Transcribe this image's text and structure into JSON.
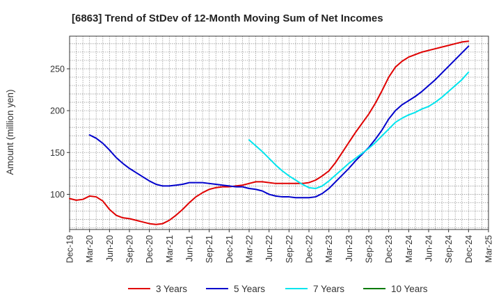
{
  "chart_data": {
    "type": "line",
    "title": "[6863]  Trend of StDev of 12-Month Moving Sum of Net Incomes",
    "ylabel": "Amount (million yen)",
    "xlabel": "",
    "ylim": [
      58,
      289
    ],
    "yticks": [
      100,
      150,
      200,
      250
    ],
    "x_tick_labels": [
      "Dec-19",
      "Mar-20",
      "Jun-20",
      "Sep-20",
      "Dec-20",
      "Mar-21",
      "Jun-21",
      "Sep-21",
      "Dec-21",
      "Mar-22",
      "Jun-22",
      "Sep-22",
      "Dec-22",
      "Mar-23",
      "Jun-23",
      "Sep-23",
      "Dec-23",
      "Mar-24",
      "Jun-24",
      "Sep-24",
      "Dec-24",
      "Mar-25"
    ],
    "months": [
      "Dec-19",
      "Jan-20",
      "Feb-20",
      "Mar-20",
      "Apr-20",
      "May-20",
      "Jun-20",
      "Jul-20",
      "Aug-20",
      "Sep-20",
      "Oct-20",
      "Nov-20",
      "Dec-20",
      "Jan-21",
      "Feb-21",
      "Mar-21",
      "Apr-21",
      "May-21",
      "Jun-21",
      "Jul-21",
      "Aug-21",
      "Sep-21",
      "Oct-21",
      "Nov-21",
      "Dec-21",
      "Jan-22",
      "Feb-22",
      "Mar-22",
      "Apr-22",
      "May-22",
      "Jun-22",
      "Jul-22",
      "Aug-22",
      "Sep-22",
      "Oct-22",
      "Nov-22",
      "Dec-22",
      "Jan-23",
      "Feb-23",
      "Mar-23",
      "Apr-23",
      "May-23",
      "Jun-23",
      "Jul-23",
      "Aug-23",
      "Sep-23",
      "Oct-23",
      "Nov-23",
      "Dec-23",
      "Jan-24",
      "Feb-24",
      "Mar-24",
      "Apr-24",
      "May-24",
      "Jun-24",
      "Jul-24",
      "Aug-24",
      "Sep-24",
      "Oct-24",
      "Nov-24",
      "Dec-24",
      "Jan-25",
      "Feb-25",
      "Mar-25"
    ],
    "grid": true,
    "legend_position": "bottom",
    "series": [
      {
        "name": "3 Years",
        "color": "#e00000",
        "values": [
          95,
          93,
          94,
          98,
          97,
          92,
          82,
          75,
          72,
          71,
          69,
          67,
          65,
          64,
          65,
          69,
          75,
          82,
          90,
          97,
          102,
          106,
          108,
          109,
          109,
          110,
          111,
          113,
          115,
          115,
          114,
          113,
          113,
          113,
          113,
          113,
          114,
          117,
          122,
          128,
          138,
          150,
          162,
          174,
          185,
          196,
          209,
          224,
          240,
          252,
          259,
          264,
          267,
          270,
          272,
          274,
          276,
          278,
          280,
          282,
          283,
          null,
          null,
          null
        ]
      },
      {
        "name": "5 Years",
        "color": "#0000cc",
        "values": [
          null,
          null,
          null,
          171,
          167,
          161,
          153,
          144,
          137,
          131,
          126,
          121,
          116,
          112,
          110,
          110,
          111,
          112,
          114,
          114,
          114,
          113,
          112,
          111,
          110,
          109,
          109,
          107,
          106,
          104,
          100,
          98,
          97,
          97,
          96,
          96,
          96,
          97,
          101,
          107,
          115,
          123,
          131,
          140,
          148,
          156,
          166,
          177,
          190,
          200,
          207,
          212,
          217,
          223,
          230,
          237,
          245,
          253,
          261,
          269,
          277,
          null,
          null,
          null
        ]
      },
      {
        "name": "7 Years",
        "color": "#00e5ee",
        "values": [
          null,
          null,
          null,
          null,
          null,
          null,
          null,
          null,
          null,
          null,
          null,
          null,
          null,
          null,
          null,
          null,
          null,
          null,
          null,
          null,
          null,
          null,
          null,
          null,
          null,
          null,
          null,
          165,
          158,
          151,
          143,
          135,
          128,
          122,
          117,
          112,
          108,
          107,
          110,
          116,
          123,
          130,
          137,
          143,
          149,
          155,
          162,
          170,
          178,
          186,
          191,
          195,
          198,
          202,
          205,
          210,
          216,
          223,
          230,
          237,
          246,
          null,
          null,
          null
        ]
      },
      {
        "name": "10 Years",
        "color": "#007a00",
        "values": []
      }
    ]
  }
}
